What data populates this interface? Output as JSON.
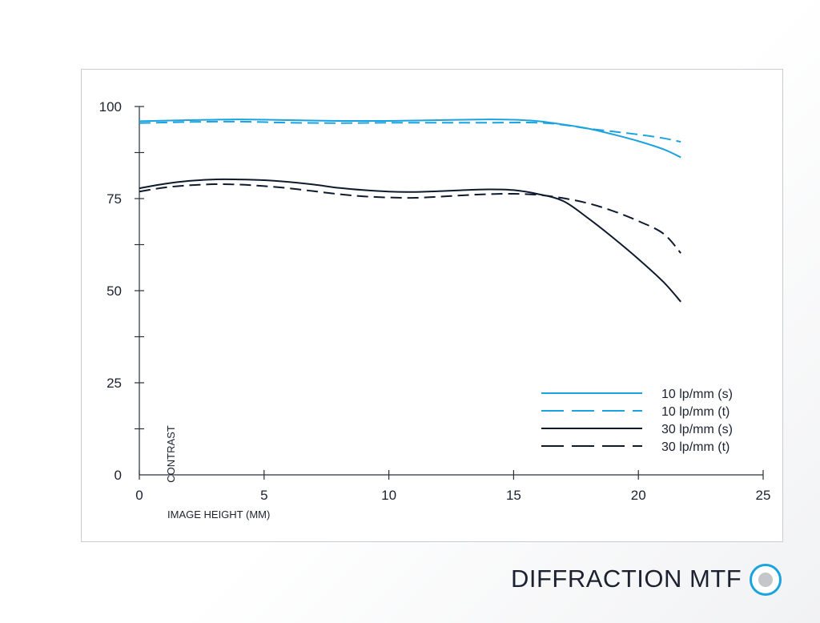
{
  "chart_data": {
    "type": "line",
    "title": "DIFFRACTION MTF",
    "xlabel": "IMAGE HEIGHT (MM)",
    "ylabel": "CONTRAST",
    "xlim": [
      0,
      25
    ],
    "ylim": [
      0,
      100
    ],
    "x_ticks": [
      0,
      5,
      10,
      15,
      20,
      25
    ],
    "y_ticks": [
      0,
      25,
      50,
      75,
      100
    ],
    "y_minor_step": 12.5,
    "grid": false,
    "legend_position": "bottom-right",
    "series": [
      {
        "name": "10 lp/mm (s)",
        "color": "#1aa3de",
        "dash": "solid",
        "points": [
          [
            0,
            96
          ],
          [
            2,
            96.3
          ],
          [
            4,
            96.5
          ],
          [
            6,
            96.3
          ],
          [
            8,
            96.1
          ],
          [
            10,
            96.1
          ],
          [
            12,
            96.3
          ],
          [
            14,
            96.5
          ],
          [
            15,
            96.4
          ],
          [
            16,
            96
          ],
          [
            17,
            95.1
          ],
          [
            18,
            94
          ],
          [
            19,
            92.4
          ],
          [
            20,
            90.6
          ],
          [
            21,
            88.4
          ],
          [
            21.7,
            86.2
          ]
        ]
      },
      {
        "name": "10 lp/mm (t)",
        "color": "#1aa3de",
        "dash": "dashed",
        "points": [
          [
            0,
            95.5
          ],
          [
            2,
            95.8
          ],
          [
            4,
            95.9
          ],
          [
            6,
            95.6
          ],
          [
            8,
            95.5
          ],
          [
            10,
            95.6
          ],
          [
            12,
            95.6
          ],
          [
            14,
            95.6
          ],
          [
            16,
            95.6
          ],
          [
            17,
            95
          ],
          [
            18,
            94
          ],
          [
            19,
            93.2
          ],
          [
            20,
            92.4
          ],
          [
            21,
            91.4
          ],
          [
            21.7,
            90.4
          ]
        ]
      },
      {
        "name": "30 lp/mm (s)",
        "color": "#0e1a2e",
        "dash": "solid",
        "points": [
          [
            0,
            77.8
          ],
          [
            1,
            79
          ],
          [
            2,
            79.8
          ],
          [
            3,
            80.2
          ],
          [
            4,
            80.2
          ],
          [
            5,
            80
          ],
          [
            6,
            79.5
          ],
          [
            7,
            78.8
          ],
          [
            8,
            77.9
          ],
          [
            9,
            77.3
          ],
          [
            10,
            76.9
          ],
          [
            11,
            76.8
          ],
          [
            12,
            77
          ],
          [
            13,
            77.3
          ],
          [
            14,
            77.5
          ],
          [
            15,
            77.3
          ],
          [
            16,
            76.2
          ],
          [
            17,
            74.3
          ],
          [
            18,
            69.6
          ],
          [
            19,
            64.3
          ],
          [
            20,
            58.6
          ],
          [
            21,
            52.4
          ],
          [
            21.7,
            47
          ]
        ]
      },
      {
        "name": "30 lp/mm (t)",
        "color": "#0e1a2e",
        "dash": "dashed",
        "points": [
          [
            0,
            76.9
          ],
          [
            1,
            78
          ],
          [
            2,
            78.6
          ],
          [
            3,
            78.9
          ],
          [
            4,
            78.8
          ],
          [
            5,
            78.4
          ],
          [
            6,
            77.8
          ],
          [
            7,
            77
          ],
          [
            8,
            76.2
          ],
          [
            9,
            75.6
          ],
          [
            10,
            75.3
          ],
          [
            11,
            75.2
          ],
          [
            12,
            75.5
          ],
          [
            13,
            75.9
          ],
          [
            14,
            76.2
          ],
          [
            15,
            76.3
          ],
          [
            16,
            76
          ],
          [
            17,
            75.1
          ],
          [
            18,
            73.7
          ],
          [
            19,
            71.6
          ],
          [
            20,
            68.9
          ],
          [
            21,
            65.5
          ],
          [
            21.7,
            60.2
          ]
        ]
      }
    ]
  }
}
